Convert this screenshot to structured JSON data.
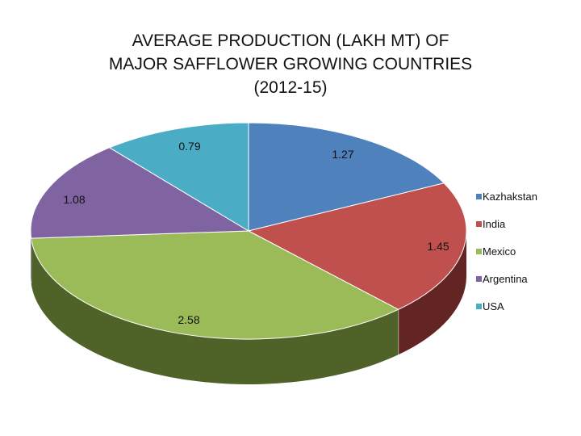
{
  "chart_data": {
    "type": "pie",
    "title": [
      "AVERAGE  PRODUCTION (LAKH MT) OF",
      "MAJOR  SAFFLOWER GROWING COUNTRIES",
      "(2012-15)"
    ],
    "categories": [
      "Kazhakstan",
      "India",
      "Mexico",
      "Argentina",
      "USA"
    ],
    "values": [
      1.27,
      1.45,
      2.58,
      1.08,
      0.79
    ],
    "data_labels": [
      "1.27",
      "1.45",
      "2.58",
      "1.08",
      "0.79"
    ],
    "colors": [
      "#4F81BD",
      "#C0504D",
      "#9BBB59",
      "#8064A2",
      "#4BACC6"
    ],
    "side_colors": [
      "#2C4A70",
      "#632523",
      "#4F6228",
      "#403152",
      "#215968"
    ],
    "legend_position": "right",
    "style": "3d-pie"
  }
}
